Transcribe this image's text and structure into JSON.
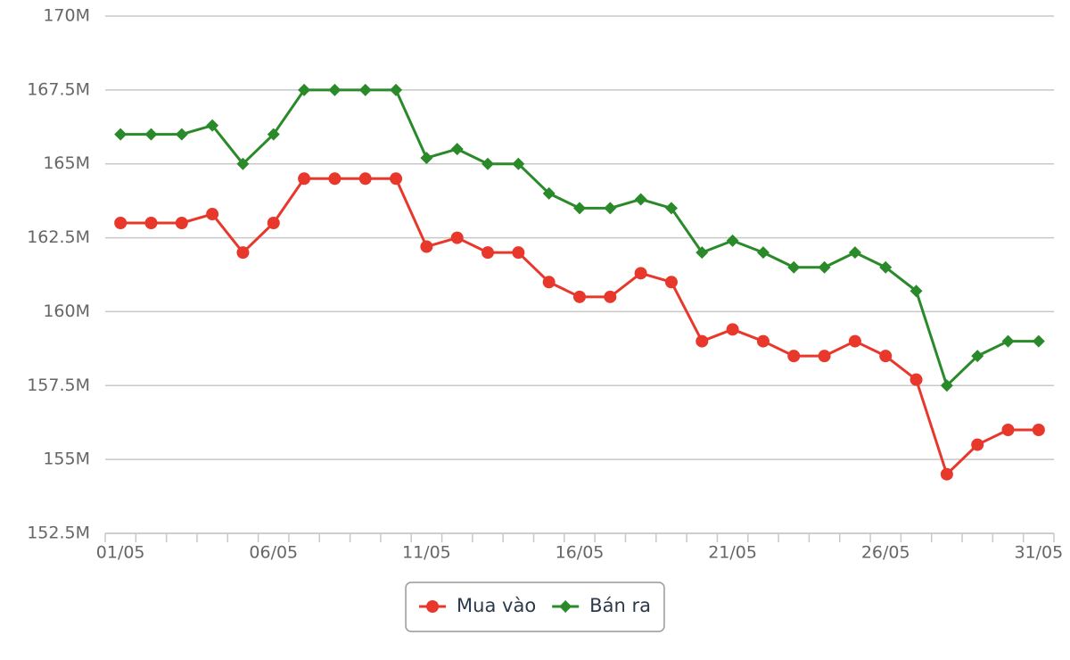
{
  "chart_data": {
    "type": "line",
    "categories": [
      "01/05",
      null,
      null,
      null,
      null,
      "06/05",
      null,
      null,
      null,
      null,
      "11/05",
      null,
      null,
      null,
      null,
      "16/05",
      null,
      null,
      null,
      null,
      "21/05",
      null,
      null,
      null,
      null,
      "26/05",
      null,
      null,
      null,
      null,
      "31/05"
    ],
    "series": [
      {
        "name": "Mua vào",
        "color": "#e8372b",
        "marker": "circle",
        "values": [
          163,
          163,
          163,
          163.3,
          162,
          163,
          164.5,
          164.5,
          164.5,
          164.5,
          162.2,
          162.5,
          162,
          162,
          161,
          160.5,
          160.5,
          161.3,
          161,
          159,
          159.4,
          159,
          158.5,
          158.5,
          159,
          158.5,
          157.7,
          154.5,
          155.5,
          156,
          156
        ]
      },
      {
        "name": "Bán ra",
        "color": "#2a8a2a",
        "marker": "diamond",
        "values": [
          166,
          166,
          166,
          166.3,
          165,
          166,
          167.5,
          167.5,
          167.5,
          167.5,
          165.2,
          165.5,
          165,
          165,
          164,
          163.5,
          163.5,
          163.8,
          163.5,
          162,
          162.4,
          162,
          161.5,
          161.5,
          162,
          161.5,
          160.7,
          157.5,
          158.5,
          159,
          159
        ]
      }
    ],
    "ylim": [
      152.5,
      170
    ],
    "yticks": [
      {
        "value": 152.5,
        "label": "152.5M"
      },
      {
        "value": 155,
        "label": "155M"
      },
      {
        "value": 157.5,
        "label": "157.5M"
      },
      {
        "value": 160,
        "label": "160M"
      },
      {
        "value": 162.5,
        "label": "162.5M"
      },
      {
        "value": 165,
        "label": "165M"
      },
      {
        "value": 167.5,
        "label": "167.5M"
      },
      {
        "value": 170,
        "label": "170M"
      }
    ],
    "grid": true,
    "legend": "bottom"
  }
}
